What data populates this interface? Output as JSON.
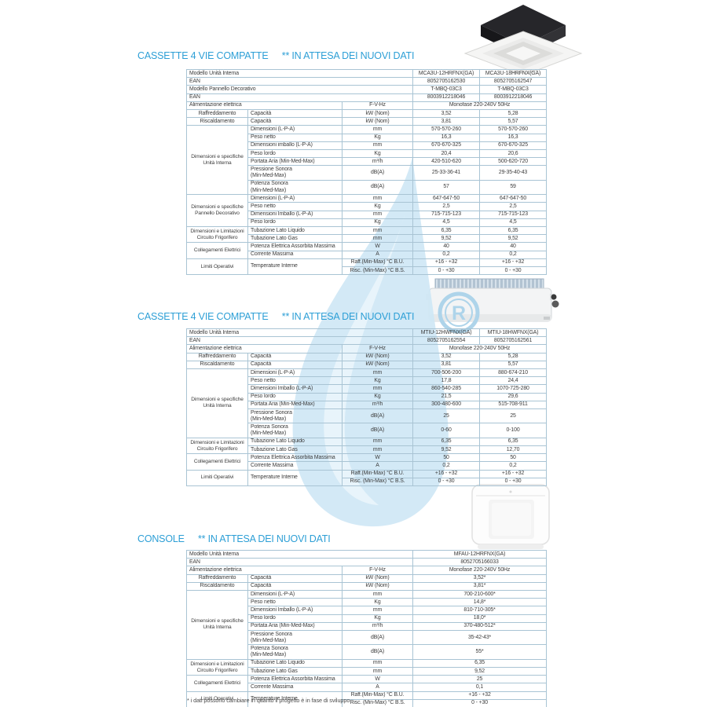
{
  "page": {
    "footnote": "* i dati possono cambiare in quanto il progetto è in fase di sviluppo"
  },
  "watermark": {
    "letter": "R"
  },
  "sections": [
    {
      "title": "CASSETTE 4 VIE COMPATTE",
      "note": "** IN ATTESA DEI NUOVI DATI",
      "image": "cassette-ceiling-unit",
      "table": {
        "rows": [
          [
            {
              "t": "Modello Unità Interna",
              "c": 3,
              "l": true
            },
            {
              "t": "MCA3U-12HRFNX(GA)"
            },
            {
              "t": "MCA3U-18HRFNX(GA)"
            }
          ],
          [
            {
              "t": "EAN",
              "c": 3,
              "l": true
            },
            {
              "t": "8052705162530"
            },
            {
              "t": "8052705162547"
            }
          ],
          [
            {
              "t": "Modello Pannello Decorativo",
              "c": 3,
              "l": true
            },
            {
              "t": "T-MBQ-03C3"
            },
            {
              "t": "T-MBQ-03C3"
            }
          ],
          [
            {
              "t": "EAN",
              "c": 3,
              "l": true
            },
            {
              "t": "8003912218046"
            },
            {
              "t": "8003912218046"
            }
          ],
          [
            {
              "t": "Alimentazione elettrica",
              "c": 2,
              "l": true
            },
            {
              "t": "F-V-Hz"
            },
            {
              "t": "Monofase 220-240V 50Hz",
              "c": 2
            }
          ],
          [
            {
              "t": "Raffreddamento"
            },
            {
              "t": "Capacità",
              "l": true
            },
            {
              "t": "kW (Nom)"
            },
            {
              "t": "3,52"
            },
            {
              "t": "5,28"
            }
          ],
          [
            {
              "t": "Riscaldamento"
            },
            {
              "t": "Capacità",
              "l": true
            },
            {
              "t": "kW (Nom)"
            },
            {
              "t": "3,81"
            },
            {
              "t": "5,57"
            }
          ],
          [
            {
              "t": "Dimensioni e specifiche\nUnità Interna",
              "r": 7,
              "g": true
            },
            {
              "t": "Dimensioni (L-P-A)",
              "l": true
            },
            {
              "t": "mm"
            },
            {
              "t": "570-570-260"
            },
            {
              "t": "570-570-260"
            }
          ],
          [
            {
              "t": "Peso netto",
              "l": true
            },
            {
              "t": "Kg"
            },
            {
              "t": "16,3"
            },
            {
              "t": "16,3"
            }
          ],
          [
            {
              "t": "Dimensioni imballo (L-P-A)",
              "l": true
            },
            {
              "t": "mm"
            },
            {
              "t": "670-670-325"
            },
            {
              "t": "670-670-325"
            }
          ],
          [
            {
              "t": "Peso lordo",
              "l": true
            },
            {
              "t": "Kg"
            },
            {
              "t": "20,4"
            },
            {
              "t": "20,6"
            }
          ],
          [
            {
              "t": "Portata Aria (Min-Med-Max)",
              "l": true
            },
            {
              "t": "m³/h"
            },
            {
              "t": "420-510-620"
            },
            {
              "t": "500-620-720"
            }
          ],
          [
            {
              "t": "Pressione Sonora\n(Min-Med-Max)",
              "l": true
            },
            {
              "t": "dB(A)"
            },
            {
              "t": "25-33-36-41"
            },
            {
              "t": "29-35-40-43"
            }
          ],
          [
            {
              "t": "Potenza Sonora\n(Min-Med-Max)",
              "l": true
            },
            {
              "t": "dB(A)"
            },
            {
              "t": "57"
            },
            {
              "t": "59"
            }
          ],
          [
            {
              "t": "Dimensioni e specifiche\nPannello Decorativo",
              "r": 4,
              "g": true
            },
            {
              "t": "Dimensioni (L-P-A)",
              "l": true
            },
            {
              "t": "mm"
            },
            {
              "t": "647-647-50"
            },
            {
              "t": "647-647-50"
            }
          ],
          [
            {
              "t": "Peso netto",
              "l": true
            },
            {
              "t": "Kg"
            },
            {
              "t": "2,5"
            },
            {
              "t": "2,5"
            }
          ],
          [
            {
              "t": "Dimensioni Imballo (L-P-A)",
              "l": true
            },
            {
              "t": "mm"
            },
            {
              "t": "715-715-123"
            },
            {
              "t": "715-715-123"
            }
          ],
          [
            {
              "t": "Peso lordo",
              "l": true
            },
            {
              "t": "Kg"
            },
            {
              "t": "4,5"
            },
            {
              "t": "4,5"
            }
          ],
          [
            {
              "t": "Dimensioni e Limitazioni\nCircuito Frigorifero",
              "r": 2,
              "g": true
            },
            {
              "t": "Tubazione Lato Liquido",
              "l": true
            },
            {
              "t": "mm"
            },
            {
              "t": "6,35"
            },
            {
              "t": "6,35"
            }
          ],
          [
            {
              "t": "Tubazione Lato Gas",
              "l": true
            },
            {
              "t": "mm"
            },
            {
              "t": "9,52"
            },
            {
              "t": "9,52"
            }
          ],
          [
            {
              "t": "Collegamenti Elettrici",
              "r": 2,
              "g": true
            },
            {
              "t": "Potenza Elettrica Assorbita Massima",
              "l": true
            },
            {
              "t": "W"
            },
            {
              "t": "40"
            },
            {
              "t": "40"
            }
          ],
          [
            {
              "t": "Corrente Massima",
              "l": true
            },
            {
              "t": "A"
            },
            {
              "t": "0,2"
            },
            {
              "t": "0,2"
            }
          ],
          [
            {
              "t": "Limiti Operativi",
              "r": 2,
              "g": true
            },
            {
              "t": "Temperature Interne",
              "r": 2,
              "l": true
            },
            {
              "t": "Raff.(Min-Max) °C B.U."
            },
            {
              "t": "+16 - +32"
            },
            {
              "t": "+16 - +32"
            }
          ],
          [
            {
              "t": "Risc. (Min-Max) °C B.S."
            },
            {
              "t": "0 - +30"
            },
            {
              "t": "0 - +30"
            }
          ]
        ]
      }
    },
    {
      "title": "CASSETTE 4 VIE COMPATTE",
      "note": "** IN ATTESA DEI NUOVI DATI",
      "image": "ducted-unit",
      "table": {
        "rows": [
          [
            {
              "t": "Modello Unità Interna",
              "c": 3,
              "l": true
            },
            {
              "t": "MTIU-12HWFNX(GA)"
            },
            {
              "t": "MTIU-18HWFNX(GA)"
            }
          ],
          [
            {
              "t": "EAN",
              "c": 3,
              "l": true
            },
            {
              "t": "8052705162554"
            },
            {
              "t": "8052705162561"
            }
          ],
          [
            {
              "t": "Alimentazione elettrica",
              "c": 2,
              "l": true
            },
            {
              "t": "F-V-Hz"
            },
            {
              "t": "Monofase 220-240V 50Hz",
              "c": 2
            }
          ],
          [
            {
              "t": "Raffreddamento"
            },
            {
              "t": "Capacità",
              "l": true
            },
            {
              "t": "kW (Nom)"
            },
            {
              "t": "3,52"
            },
            {
              "t": "5,28"
            }
          ],
          [
            {
              "t": "Riscaldamento"
            },
            {
              "t": "Capacità",
              "l": true
            },
            {
              "t": "kW (Nom)"
            },
            {
              "t": "3,81"
            },
            {
              "t": "5,57"
            }
          ],
          [
            {
              "t": "Dimensioni e specifiche\nUnità Interna",
              "r": 7,
              "g": true
            },
            {
              "t": "Dimensioni (L-P-A)",
              "l": true
            },
            {
              "t": "mm"
            },
            {
              "t": "700-506-200"
            },
            {
              "t": "880-674-210"
            }
          ],
          [
            {
              "t": "Peso netto",
              "l": true
            },
            {
              "t": "Kg"
            },
            {
              "t": "17,8"
            },
            {
              "t": "24,4"
            }
          ],
          [
            {
              "t": "Dimensioni Imballo (L-P-A)",
              "l": true
            },
            {
              "t": "mm"
            },
            {
              "t": "860-540-285"
            },
            {
              "t": "1070-725-280"
            }
          ],
          [
            {
              "t": "Peso lordo",
              "l": true
            },
            {
              "t": "Kg"
            },
            {
              "t": "21,5"
            },
            {
              "t": "29,6"
            }
          ],
          [
            {
              "t": "Portata Aria (Min-Med-Max)",
              "l": true
            },
            {
              "t": "m³/h"
            },
            {
              "t": "300-480-600"
            },
            {
              "t": "515-708-911"
            }
          ],
          [
            {
              "t": "Pressione Sonora\n(Min-Med-Max)",
              "l": true
            },
            {
              "t": "dB(A)"
            },
            {
              "t": "25"
            },
            {
              "t": "25"
            }
          ],
          [
            {
              "t": "Potenza Sonora\n(Min-Med-Max)",
              "l": true
            },
            {
              "t": "dB(A)"
            },
            {
              "t": "0-60"
            },
            {
              "t": "0-100"
            }
          ],
          [
            {
              "t": "Dimensioni e Limitazioni\nCircuito Frigorifero",
              "r": 2,
              "g": true
            },
            {
              "t": "Tubazione Lato Liquido",
              "l": true
            },
            {
              "t": "mm"
            },
            {
              "t": "6,35"
            },
            {
              "t": "6,35"
            }
          ],
          [
            {
              "t": "Tubazione Lato Gas",
              "l": true
            },
            {
              "t": "mm"
            },
            {
              "t": "9,52"
            },
            {
              "t": "12,70"
            }
          ],
          [
            {
              "t": "Collegamenti Elettrici",
              "r": 2,
              "g": true
            },
            {
              "t": "Potenza Elettrica Assorbita Massima",
              "l": true
            },
            {
              "t": "W"
            },
            {
              "t": "50"
            },
            {
              "t": "50"
            }
          ],
          [
            {
              "t": "Corrente Massima",
              "l": true
            },
            {
              "t": "A"
            },
            {
              "t": "0,2"
            },
            {
              "t": "0,2"
            }
          ],
          [
            {
              "t": "Limiti Operativi",
              "r": 2,
              "g": true
            },
            {
              "t": "Temperature Interne",
              "r": 2,
              "l": true
            },
            {
              "t": "Raff.(Min-Max) °C B.U."
            },
            {
              "t": "+16 - +32"
            },
            {
              "t": "+16 - +32"
            }
          ],
          [
            {
              "t": "Risc. (Min-Max) °C B.S."
            },
            {
              "t": "0 - +30"
            },
            {
              "t": "0 - +30"
            }
          ]
        ]
      }
    },
    {
      "title": "CONSOLE",
      "note": "** IN ATTESA DEI NUOVI DATI",
      "image": "console-floor-unit",
      "table": {
        "rows": [
          [
            {
              "t": "Modello Unità Interna",
              "c": 3,
              "l": true
            },
            {
              "t": "MFAU-12HRFNX(GA)"
            }
          ],
          [
            {
              "t": "EAN",
              "c": 3,
              "l": true
            },
            {
              "t": "8052705166033"
            }
          ],
          [
            {
              "t": "Alimentazione elettrica",
              "c": 2,
              "l": true
            },
            {
              "t": "F-V-Hz"
            },
            {
              "t": "Monofase 220-240V 50Hz"
            }
          ],
          [
            {
              "t": "Raffreddamento"
            },
            {
              "t": "Capacità",
              "l": true
            },
            {
              "t": "kW (Nom)"
            },
            {
              "t": "3,52*"
            }
          ],
          [
            {
              "t": "Riscaldamento"
            },
            {
              "t": "Capacità",
              "l": true
            },
            {
              "t": "kW (Nom)"
            },
            {
              "t": "3,81*"
            }
          ],
          [
            {
              "t": "Dimensioni e specifiche\nUnità Interna",
              "r": 7,
              "g": true
            },
            {
              "t": "Dimensioni (L-P-A)",
              "l": true
            },
            {
              "t": "mm"
            },
            {
              "t": "700-210-600*"
            }
          ],
          [
            {
              "t": "Peso netto",
              "l": true
            },
            {
              "t": "Kg"
            },
            {
              "t": "14,8*"
            }
          ],
          [
            {
              "t": "Dimensioni Imballo (L-P-A)",
              "l": true
            },
            {
              "t": "mm"
            },
            {
              "t": "810-710-305*"
            }
          ],
          [
            {
              "t": "Peso lordo",
              "l": true
            },
            {
              "t": "Kg"
            },
            {
              "t": "18,0*"
            }
          ],
          [
            {
              "t": "Portata Aria (Min-Med-Max)",
              "l": true
            },
            {
              "t": "m³/h"
            },
            {
              "t": "370-480-512*"
            }
          ],
          [
            {
              "t": "Pressione Sonora\n(Min-Med-Max)",
              "l": true
            },
            {
              "t": "dB(A)"
            },
            {
              "t": "35-42-43*"
            }
          ],
          [
            {
              "t": "Potenza Sonora\n(Min-Med-Max)",
              "l": true
            },
            {
              "t": "dB(A)"
            },
            {
              "t": "55*"
            }
          ],
          [
            {
              "t": "Dimensioni e Limitazioni\nCircuito Frigorifero",
              "r": 2,
              "g": true
            },
            {
              "t": "Tubazione Lato Liquido",
              "l": true
            },
            {
              "t": "mm"
            },
            {
              "t": "6,35"
            }
          ],
          [
            {
              "t": "Tubazione Lato Gas",
              "l": true
            },
            {
              "t": "mm"
            },
            {
              "t": "9,52"
            }
          ],
          [
            {
              "t": "Collegamenti Elettrici",
              "r": 2,
              "g": true
            },
            {
              "t": "Potenza Elettrica Assorbita Massima",
              "l": true
            },
            {
              "t": "W"
            },
            {
              "t": "25"
            }
          ],
          [
            {
              "t": "Corrente Massima",
              "l": true
            },
            {
              "t": "A"
            },
            {
              "t": "0,1"
            }
          ],
          [
            {
              "t": "Limiti Operativi",
              "r": 2,
              "g": true
            },
            {
              "t": "Temperature Interne",
              "r": 2,
              "l": true
            },
            {
              "t": "Raff.(Min-Max) °C B.U."
            },
            {
              "t": "+16 - +32"
            }
          ],
          [
            {
              "t": "Risc. (Min-Max) °C B.S."
            },
            {
              "t": "0 - +30"
            }
          ]
        ]
      }
    }
  ]
}
